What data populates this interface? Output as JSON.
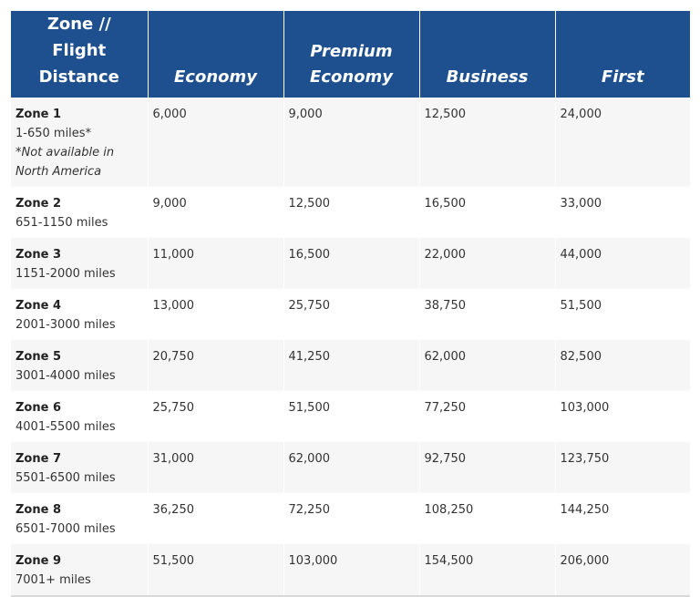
{
  "table": {
    "headers": [
      "Zone // Flight Distance",
      "Economy",
      "Premium Economy",
      "Business",
      "First"
    ],
    "rows": [
      {
        "zone": "Zone 1",
        "distance": "1-650 miles*",
        "note": "*Not available in North America",
        "economy": "6,000",
        "premium_economy": "9,000",
        "business": "12,500",
        "first": "24,000"
      },
      {
        "zone": "Zone 2",
        "distance": "651-1150 miles",
        "economy": "9,000",
        "premium_economy": "12,500",
        "business": "16,500",
        "first": "33,000"
      },
      {
        "zone": "Zone 3",
        "distance": "1151-2000 miles",
        "economy": "11,000",
        "premium_economy": "16,500",
        "business": "22,000",
        "first": "44,000"
      },
      {
        "zone": "Zone 4",
        "distance": "2001-3000 miles",
        "economy": "13,000",
        "premium_economy": "25,750",
        "business": "38,750",
        "first": "51,500"
      },
      {
        "zone": "Zone 5",
        "distance": "3001-4000 miles",
        "economy": "20,750",
        "premium_economy": "41,250",
        "business": "62,000",
        "first": "82,500"
      },
      {
        "zone": "Zone 6",
        "distance": "4001-5500 miles",
        "economy": "25,750",
        "premium_economy": "51,500",
        "business": "77,250",
        "first": "103,000"
      },
      {
        "zone": "Zone 7",
        "distance": "5501-6500 miles",
        "economy": "31,000",
        "premium_economy": "62,000",
        "business": "92,750",
        "first": "123,750"
      },
      {
        "zone": "Zone 8",
        "distance": "6501-7000 miles",
        "economy": "36,250",
        "premium_economy": "72,250",
        "business": "108,250",
        "first": "144,250"
      },
      {
        "zone": "Zone 9",
        "distance": "7001+ miles",
        "economy": "51,500",
        "premium_economy": "103,000",
        "business": "154,500",
        "first": "206,000"
      }
    ]
  },
  "colors": {
    "header_bg": "#1e4f8f",
    "header_text": "#ffffff",
    "row_alt_bg": "#f6f6f6"
  }
}
